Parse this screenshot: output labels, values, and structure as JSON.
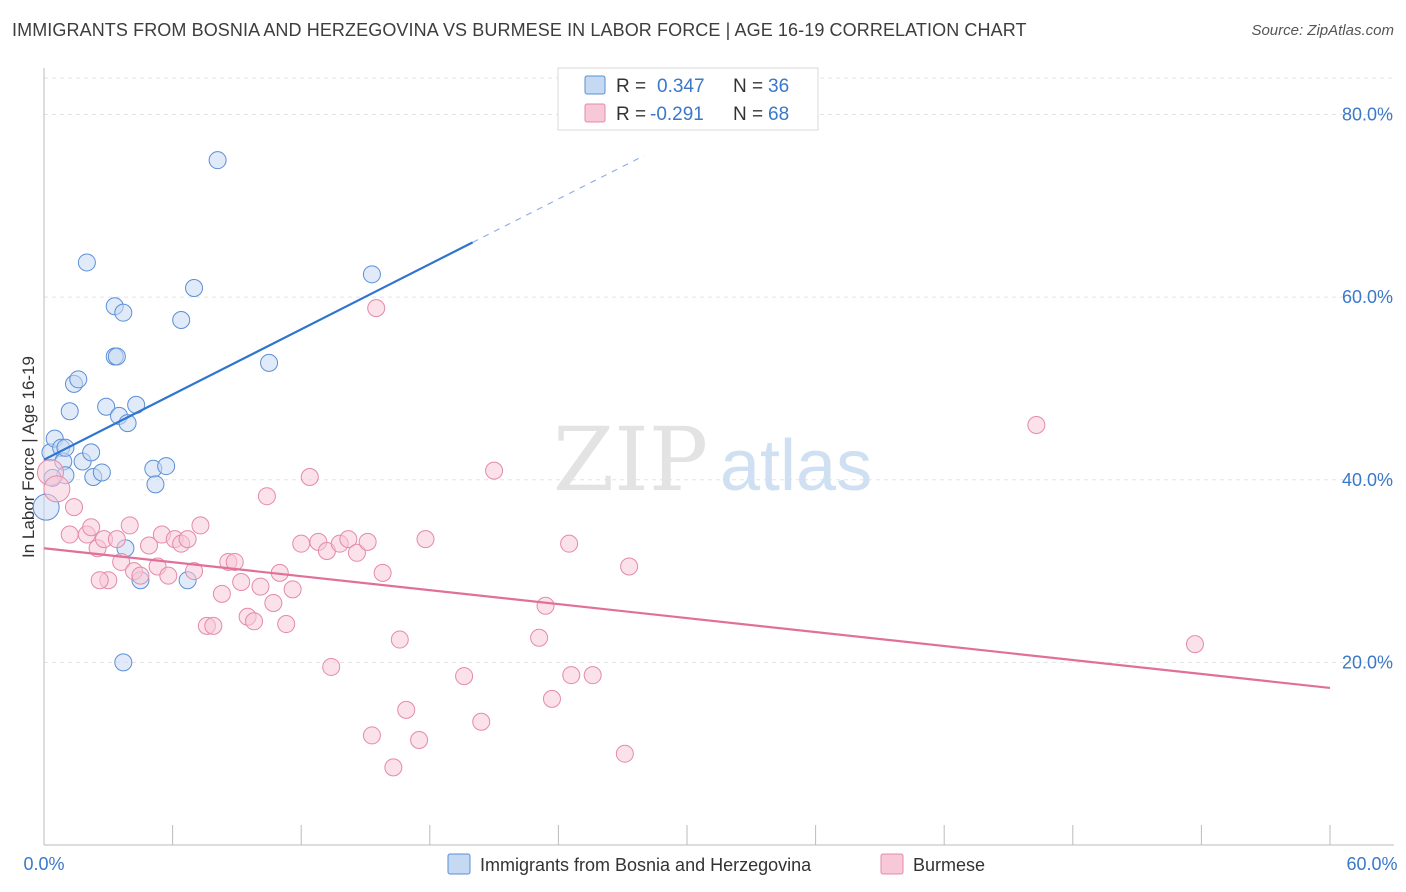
{
  "title": "IMMIGRANTS FROM BOSNIA AND HERZEGOVINA VS BURMESE IN LABOR FORCE | AGE 16-19 CORRELATION CHART",
  "source": "Source: ZipAtlas.com",
  "watermark": {
    "zip": "ZIP",
    "atlas": "atlas"
  },
  "chart_data": {
    "type": "scatter",
    "xlabel": "",
    "ylabel": "In Labor Force | Age 16-19",
    "xlim": [
      0,
      60
    ],
    "ylim": [
      0,
      84
    ],
    "x_tick_labels": [
      "0.0%",
      "60.0%"
    ],
    "y_ticks": [
      20,
      40,
      60,
      80
    ],
    "y_tick_labels": [
      "20.0%",
      "40.0%",
      "60.0%",
      "80.0%"
    ],
    "grid": true,
    "legend_position": "bottom",
    "stats": [
      {
        "r_label": "R =",
        "r": "0.347",
        "n_label": "N =",
        "n": "36"
      },
      {
        "r_label": "R =",
        "r": "-0.291",
        "n_label": "N =",
        "n": "68"
      }
    ],
    "series": [
      {
        "name": "Immigrants from Bosnia and Herzegovina",
        "color": "#5b8fd6",
        "fill": "#c6d9f3",
        "trend": {
          "x0": 0,
          "y0": 42.2,
          "x1": 20,
          "y1": 66.0,
          "dash_to_x": 28,
          "dash_to_y": 75.5
        },
        "points": [
          [
            0.1,
            37.0,
            2
          ],
          [
            0.3,
            43.0,
            1
          ],
          [
            0.5,
            44.5,
            1
          ],
          [
            0.8,
            43.5,
            1
          ],
          [
            0.9,
            42.0,
            1
          ],
          [
            1.0,
            40.5,
            1
          ],
          [
            1.2,
            47.5,
            1
          ],
          [
            1.4,
            50.5,
            1
          ],
          [
            1.6,
            51.0,
            1
          ],
          [
            1.8,
            42.0,
            1
          ],
          [
            2.0,
            63.8,
            1
          ],
          [
            2.2,
            43.0,
            1
          ],
          [
            2.3,
            40.3,
            1
          ],
          [
            2.7,
            40.8,
            1
          ],
          [
            2.9,
            48.0,
            1
          ],
          [
            3.3,
            53.5,
            1
          ],
          [
            3.4,
            53.5,
            1
          ],
          [
            3.3,
            59.0,
            1
          ],
          [
            3.5,
            47.0,
            1
          ],
          [
            3.7,
            58.3,
            1
          ],
          [
            3.9,
            46.2,
            1
          ],
          [
            4.3,
            48.2,
            1
          ],
          [
            4.5,
            29.0,
            1
          ],
          [
            3.8,
            32.5,
            1
          ],
          [
            5.1,
            41.2,
            1
          ],
          [
            5.2,
            39.5,
            1
          ],
          [
            5.7,
            41.5,
            1
          ],
          [
            6.4,
            57.5,
            1
          ],
          [
            6.7,
            29.0,
            1
          ],
          [
            7.0,
            61.0,
            1
          ],
          [
            8.1,
            75.0,
            1
          ],
          [
            10.5,
            52.8,
            1
          ],
          [
            15.3,
            62.5,
            1
          ],
          [
            3.7,
            20.0,
            1
          ],
          [
            0.4,
            40.2,
            1
          ],
          [
            1.0,
            43.5,
            1
          ]
        ]
      },
      {
        "name": "Burmese",
        "color": "#e58aa8",
        "fill": "#f7c8d7",
        "trend": {
          "x0": 0,
          "y0": 32.5,
          "x1": 60,
          "y1": 17.2
        },
        "points": [
          [
            0.3,
            40.8,
            2
          ],
          [
            0.6,
            39.0,
            2
          ],
          [
            1.2,
            34.0,
            1
          ],
          [
            1.4,
            37.0,
            1
          ],
          [
            2.0,
            34.0,
            1
          ],
          [
            2.2,
            34.8,
            1
          ],
          [
            2.5,
            32.5,
            1
          ],
          [
            2.8,
            33.5,
            1
          ],
          [
            3.0,
            29.0,
            1
          ],
          [
            3.4,
            33.5,
            1
          ],
          [
            3.6,
            31.0,
            1
          ],
          [
            4.0,
            35.0,
            1
          ],
          [
            4.2,
            30.0,
            1
          ],
          [
            4.5,
            29.5,
            1
          ],
          [
            4.9,
            32.8,
            1
          ],
          [
            5.3,
            30.5,
            1
          ],
          [
            5.5,
            34.0,
            1
          ],
          [
            5.8,
            29.5,
            1
          ],
          [
            6.1,
            33.5,
            1
          ],
          [
            6.4,
            33.0,
            1
          ],
          [
            6.7,
            33.5,
            1
          ],
          [
            7.0,
            30.0,
            1
          ],
          [
            7.3,
            35.0,
            1
          ],
          [
            7.6,
            24.0,
            1
          ],
          [
            7.9,
            24.0,
            1
          ],
          [
            8.3,
            27.5,
            1
          ],
          [
            8.6,
            31.0,
            1
          ],
          [
            8.9,
            31.0,
            1
          ],
          [
            9.2,
            28.8,
            1
          ],
          [
            9.5,
            25.0,
            1
          ],
          [
            9.8,
            24.5,
            1
          ],
          [
            10.1,
            28.3,
            1
          ],
          [
            10.4,
            38.2,
            1
          ],
          [
            10.7,
            26.5,
            1
          ],
          [
            11.0,
            29.8,
            1
          ],
          [
            11.3,
            24.2,
            1
          ],
          [
            11.6,
            28.0,
            1
          ],
          [
            12.0,
            33.0,
            1
          ],
          [
            12.4,
            40.3,
            1
          ],
          [
            12.8,
            33.2,
            1
          ],
          [
            13.2,
            32.2,
            1
          ],
          [
            13.4,
            19.5,
            1
          ],
          [
            13.8,
            33.0,
            1
          ],
          [
            14.2,
            33.5,
            1
          ],
          [
            14.6,
            32.0,
            1
          ],
          [
            15.1,
            33.2,
            1
          ],
          [
            15.3,
            12.0,
            1
          ],
          [
            15.5,
            58.8,
            1
          ],
          [
            15.8,
            29.8,
            1
          ],
          [
            16.3,
            8.5,
            1
          ],
          [
            16.6,
            22.5,
            1
          ],
          [
            16.9,
            14.8,
            1
          ],
          [
            17.5,
            11.5,
            1
          ],
          [
            17.8,
            33.5,
            1
          ],
          [
            19.6,
            18.5,
            1
          ],
          [
            20.4,
            13.5,
            1
          ],
          [
            21.0,
            41.0,
            1
          ],
          [
            23.1,
            22.7,
            1
          ],
          [
            23.4,
            26.2,
            1
          ],
          [
            23.7,
            16.0,
            1
          ],
          [
            24.5,
            33.0,
            1
          ],
          [
            24.6,
            18.6,
            1
          ],
          [
            25.6,
            18.6,
            1
          ],
          [
            27.1,
            10.0,
            1
          ],
          [
            27.3,
            30.5,
            1
          ],
          [
            46.3,
            46.0,
            1
          ],
          [
            53.7,
            22.0,
            1
          ],
          [
            2.6,
            29.0,
            1
          ]
        ]
      }
    ]
  }
}
